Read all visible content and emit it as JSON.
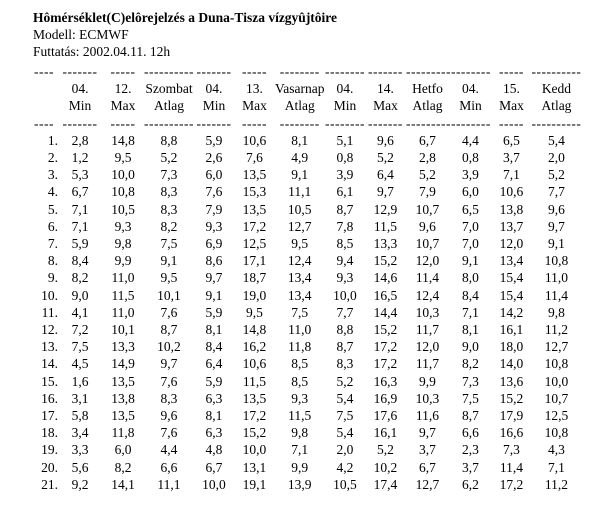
{
  "header": {
    "title": "Hômérséklet(C)elôrejelzés a Duna-Tisza vízgyûjtôire",
    "model_line": "Modell: ECMWF",
    "run_line": "Futtatás: 2002.04.11. 12h"
  },
  "table": {
    "day_headers": [
      {
        "month": "04.",
        "day": "12.",
        "name": "Szombat"
      },
      {
        "month": "04.",
        "day": "13.",
        "name": "Vasarnap"
      },
      {
        "month": "04.",
        "day": "14.",
        "name": "Hetfo"
      },
      {
        "month": "04.",
        "day": "15.",
        "name": "Kedd"
      }
    ],
    "sub_headers": [
      "Min",
      "Max",
      "Atlag"
    ],
    "separator_groups": [
      "----",
      "-------",
      "-----",
      "----------",
      "-------",
      "-----",
      "--------",
      "--------",
      "-------",
      "-----------------",
      "-----",
      "----------"
    ],
    "rows": [
      {
        "num": "1.",
        "values": [
          "2,8",
          "14,8",
          "8,8",
          "5,9",
          "10,6",
          "8,1",
          "5,1",
          "9,6",
          "6,7",
          "4,4",
          "6,5",
          "5,4"
        ]
      },
      {
        "num": "2.",
        "values": [
          "1,2",
          "9,5",
          "5,2",
          "2,6",
          "7,6",
          "4,9",
          "0,8",
          "5,2",
          "2,8",
          "0,8",
          "3,7",
          "2,0"
        ]
      },
      {
        "num": "3.",
        "values": [
          "5,3",
          "10,0",
          "7,3",
          "6,0",
          "13,5",
          "9,1",
          "3,9",
          "6,4",
          "5,2",
          "3,9",
          "7,1",
          "5,2"
        ]
      },
      {
        "num": "4.",
        "values": [
          "6,7",
          "10,8",
          "8,3",
          "7,6",
          "15,3",
          "11,1",
          "6,1",
          "9,7",
          "7,9",
          "6,0",
          "10,6",
          "7,7"
        ]
      },
      {
        "num": "5.",
        "values": [
          "7,1",
          "10,5",
          "8,3",
          "7,9",
          "13,5",
          "10,5",
          "8,7",
          "12,9",
          "10,7",
          "6,5",
          "13,8",
          "9,6"
        ]
      },
      {
        "num": "6.",
        "values": [
          "7,1",
          "9,3",
          "8,2",
          "9,3",
          "17,2",
          "12,7",
          "7,8",
          "11,5",
          "9,6",
          "7,0",
          "13,7",
          "9,7"
        ]
      },
      {
        "num": "7.",
        "values": [
          "5,9",
          "9,8",
          "7,5",
          "6,9",
          "12,5",
          "9,5",
          "8,5",
          "13,3",
          "10,7",
          "7,0",
          "12,0",
          "9,1"
        ]
      },
      {
        "num": "8.",
        "values": [
          "8,4",
          "9,9",
          "9,1",
          "8,6",
          "17,1",
          "12,4",
          "9,4",
          "15,2",
          "12,0",
          "9,1",
          "13,4",
          "10,8"
        ]
      },
      {
        "num": "9.",
        "values": [
          "8,2",
          "11,0",
          "9,5",
          "9,7",
          "18,7",
          "13,4",
          "9,3",
          "14,6",
          "11,4",
          "8,0",
          "15,4",
          "11,0"
        ]
      },
      {
        "num": "10.",
        "values": [
          "9,0",
          "11,5",
          "10,1",
          "9,1",
          "19,0",
          "13,4",
          "10,0",
          "16,5",
          "12,4",
          "8,4",
          "15,4",
          "11,4"
        ]
      },
      {
        "num": "11.",
        "values": [
          "4,1",
          "11,0",
          "7,6",
          "5,9",
          "9,5",
          "7,5",
          "7,7",
          "14,4",
          "10,3",
          "7,1",
          "14,2",
          "9,8"
        ]
      },
      {
        "num": "12.",
        "values": [
          "7,2",
          "10,1",
          "8,7",
          "8,1",
          "14,8",
          "11,0",
          "8,8",
          "15,2",
          "11,7",
          "8,1",
          "16,1",
          "11,2"
        ]
      },
      {
        "num": "13.",
        "values": [
          "7,5",
          "13,3",
          "10,2",
          "8,4",
          "16,2",
          "11,8",
          "8,7",
          "17,2",
          "12,0",
          "9,0",
          "18,0",
          "12,7"
        ]
      },
      {
        "num": "14.",
        "values": [
          "4,5",
          "14,9",
          "9,7",
          "6,4",
          "10,6",
          "8,5",
          "8,3",
          "17,2",
          "11,7",
          "8,2",
          "14,0",
          "10,8"
        ]
      },
      {
        "num": "15.",
        "values": [
          "1,6",
          "13,5",
          "7,6",
          "5,9",
          "11,5",
          "8,5",
          "5,2",
          "16,3",
          "9,9",
          "7,3",
          "13,6",
          "10,0"
        ]
      },
      {
        "num": "16.",
        "values": [
          "3,1",
          "13,8",
          "8,3",
          "6,3",
          "13,5",
          "9,3",
          "5,4",
          "16,9",
          "10,3",
          "7,5",
          "15,2",
          "10,7"
        ]
      },
      {
        "num": "17.",
        "values": [
          "5,8",
          "13,5",
          "9,6",
          "8,1",
          "17,2",
          "11,5",
          "7,5",
          "17,6",
          "11,6",
          "8,7",
          "17,9",
          "12,5"
        ]
      },
      {
        "num": "18.",
        "values": [
          "3,4",
          "11,8",
          "7,6",
          "6,3",
          "15,2",
          "9,8",
          "5,4",
          "16,1",
          "9,7",
          "6,6",
          "16,6",
          "10,8"
        ]
      },
      {
        "num": "19.",
        "values": [
          "3,3",
          "6,0",
          "4,4",
          "4,8",
          "10,0",
          "7,1",
          "2,0",
          "5,2",
          "3,7",
          "2,3",
          "7,3",
          "4,3"
        ]
      },
      {
        "num": "20.",
        "values": [
          "5,6",
          "8,2",
          "6,6",
          "6,7",
          "13,1",
          "9,9",
          "4,2",
          "10,2",
          "6,7",
          "3,7",
          "11,4",
          "7,1"
        ]
      },
      {
        "num": "21.",
        "values": [
          "9,2",
          "14,1",
          "11,1",
          "10,0",
          "19,1",
          "13,9",
          "10,5",
          "17,4",
          "12,7",
          "6,2",
          "17,2",
          "11,2"
        ]
      }
    ]
  }
}
